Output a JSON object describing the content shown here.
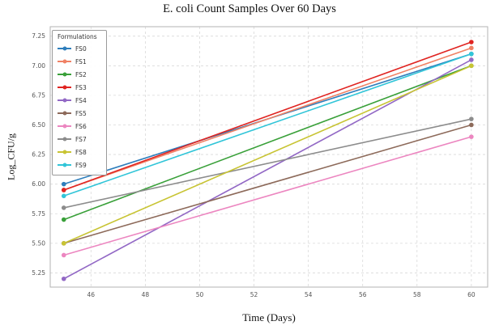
{
  "title": "E. coli Count Samples Over 60 Days",
  "chart_data": {
    "type": "line",
    "title": "E. coli Count Samples Over 60 Days",
    "xlabel": "Time (Days)",
    "ylabel": "Log_CFU/g",
    "legend_title": "Formulations",
    "legend_position": "upper-left",
    "grid": true,
    "x": [
      45,
      60
    ],
    "xlim": [
      44.5,
      60.6
    ],
    "ylim": [
      5.13,
      7.33
    ],
    "xticks": [
      46,
      48,
      50,
      52,
      54,
      56,
      58,
      60
    ],
    "yticks": [
      5.25,
      5.5,
      5.75,
      6.0,
      6.25,
      6.5,
      6.75,
      7.0,
      7.25
    ],
    "series": [
      {
        "name": "FS0",
        "color": "#2e7ebc",
        "values": [
          6.0,
          7.1
        ]
      },
      {
        "name": "FS1",
        "color": "#f08165",
        "values": [
          5.95,
          7.15
        ]
      },
      {
        "name": "FS2",
        "color": "#39a039",
        "values": [
          5.7,
          7.0
        ]
      },
      {
        "name": "FS3",
        "color": "#e02421",
        "values": [
          5.95,
          7.2
        ]
      },
      {
        "name": "FS4",
        "color": "#9268c5",
        "values": [
          5.2,
          7.05
        ]
      },
      {
        "name": "FS5",
        "color": "#8d6a5a",
        "values": [
          5.5,
          6.5
        ]
      },
      {
        "name": "FS6",
        "color": "#ec86c0",
        "values": [
          5.4,
          6.4
        ]
      },
      {
        "name": "FS7",
        "color": "#8c8c8c",
        "values": [
          5.8,
          6.55
        ]
      },
      {
        "name": "FS8",
        "color": "#c8c433",
        "values": [
          5.5,
          7.0
        ]
      },
      {
        "name": "FS9",
        "color": "#31c5d8",
        "values": [
          5.9,
          7.1
        ]
      }
    ]
  }
}
